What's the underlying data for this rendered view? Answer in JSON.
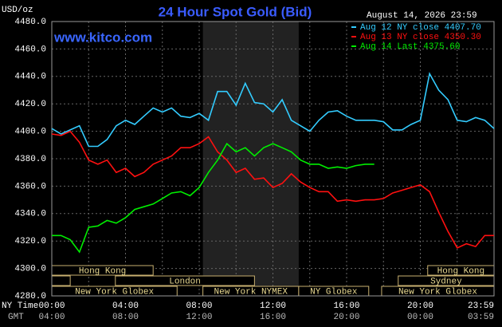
{
  "chart_data": {
    "type": "line",
    "title": "24 Hour Spot Gold (Bid)",
    "y_label": "USD/oz",
    "date": "August 14, 2026 23:59",
    "watermark": "www.kitco.com",
    "x_label_top": "NY Time",
    "x_label_bottom": "GMT",
    "x": [
      0,
      0.5,
      1,
      1.5,
      2,
      2.5,
      3,
      3.5,
      4,
      4.5,
      5,
      5.5,
      6,
      6.5,
      7,
      7.5,
      8,
      8.5,
      9,
      9.5,
      10,
      10.5,
      11,
      11.5,
      12,
      12.5,
      13,
      13.5,
      14,
      14.5,
      15,
      15.5,
      16,
      16.5,
      17,
      17.5,
      18,
      18.5,
      19,
      19.5,
      20,
      20.5,
      21,
      21.5,
      22,
      22.5,
      23,
      23.5,
      24
    ],
    "series": [
      {
        "name": "Aug 12 NY close 4407.70",
        "color": "#33ccff",
        "values": [
          4402,
          4398,
          4401,
          4404,
          4389,
          4389,
          4394,
          4404,
          4408,
          4405,
          4411,
          4417,
          4414,
          4417,
          4411,
          4410,
          4413,
          4408,
          4429,
          4429,
          4419,
          4435,
          4421,
          4420,
          4414,
          4423,
          4408,
          4404,
          4400,
          4408,
          4414,
          4415,
          4411,
          4408,
          4408,
          4408,
          4407,
          4401,
          4401,
          4405,
          4408,
          4442,
          4430,
          4423,
          4408,
          4407,
          4410,
          4408,
          4402
        ]
      },
      {
        "name": "Aug 13 NY close 4350.30",
        "color": "#ff1010",
        "values": [
          4398,
          4397,
          4400,
          4392,
          4379,
          4376,
          4379,
          4370,
          4373,
          4367,
          4370,
          4376,
          4379,
          4382,
          4388,
          4388,
          4391,
          4396,
          4385,
          4379,
          4370,
          4373,
          4365,
          4366,
          4359,
          4362,
          4369,
          4363,
          4359,
          4356,
          4356,
          4349,
          4350,
          4349,
          4350,
          4350,
          4351,
          4355,
          4357,
          4359,
          4361,
          4356,
          4341,
          4327,
          4315,
          4318,
          4316,
          4324,
          4324
        ]
      },
      {
        "name": "Aug 14 Last 4375.60",
        "color": "#00ee00",
        "values": [
          4324,
          4324,
          4321,
          4312,
          4330,
          4331,
          4335,
          4333,
          4337,
          4343,
          4345,
          4347,
          4351,
          4355,
          4356,
          4353,
          4359,
          4370,
          4379,
          4391,
          4385,
          4388,
          4382,
          4388,
          4391,
          4388,
          4385,
          4379,
          4376,
          4376,
          4373,
          4374,
          4373,
          4375,
          4376,
          4376,
          null,
          null,
          null,
          null,
          null,
          null,
          null,
          null,
          null,
          null,
          null,
          null,
          null
        ]
      }
    ],
    "xlim": [
      0,
      24
    ],
    "ylim": [
      4280,
      4480
    ],
    "xticks": [
      {
        "value": 0,
        "label": "00:00"
      },
      {
        "value": 4,
        "label": "04:00"
      },
      {
        "value": 8,
        "label": "08:00"
      },
      {
        "value": 12,
        "label": "12:00"
      },
      {
        "value": 16,
        "label": "16:00"
      },
      {
        "value": 20,
        "label": "20:00"
      },
      {
        "value": 24,
        "label": "23:59"
      }
    ],
    "gmt_labels": [
      "04:00",
      "08:00",
      "12:00",
      "16:00",
      "20:00",
      "00:00",
      "03:59"
    ],
    "xminor": [
      2,
      6,
      10,
      14,
      18,
      22
    ],
    "yticks": [
      {
        "value": 4280,
        "label": "4280.0"
      },
      {
        "value": 4300,
        "label": "4300.0"
      },
      {
        "value": 4320,
        "label": "4320.0"
      },
      {
        "value": 4340,
        "label": "4340.0"
      },
      {
        "value": 4360,
        "label": "4360.0"
      },
      {
        "value": 4380,
        "label": "4380.0"
      },
      {
        "value": 4400,
        "label": "4400.0"
      },
      {
        "value": 4420,
        "label": "4420.0"
      },
      {
        "value": 4440,
        "label": "4440.0"
      },
      {
        "value": 4460,
        "label": "4460.0"
      },
      {
        "value": 4480,
        "label": "4480.0"
      }
    ],
    "grid": true,
    "shade": [
      8.2,
      13.4
    ],
    "sessions": [
      {
        "name": "Hong Kong",
        "row": 0,
        "start": 0,
        "end": 5.5
      },
      {
        "name": "Hong Kong",
        "row": 0,
        "start": 20.4,
        "end": 24
      },
      {
        "name": null,
        "row": 1,
        "start": 0,
        "end": 1
      },
      {
        "name": "London",
        "row": 1,
        "start": 3.45,
        "end": 11
      },
      {
        "name": "Sydney",
        "row": 1,
        "start": 18.8,
        "end": 24
      },
      {
        "name": "New York Globex",
        "row": 2,
        "start": 0,
        "end": 6.8
      },
      {
        "name": "New York NYMEX",
        "row": 2,
        "start": 8.2,
        "end": 13.4
      },
      {
        "name": "NY Globex",
        "row": 2,
        "start": 13.4,
        "end": 17.2
      },
      {
        "name": "New York Globex",
        "row": 2,
        "start": 17.9,
        "end": 24
      }
    ]
  }
}
